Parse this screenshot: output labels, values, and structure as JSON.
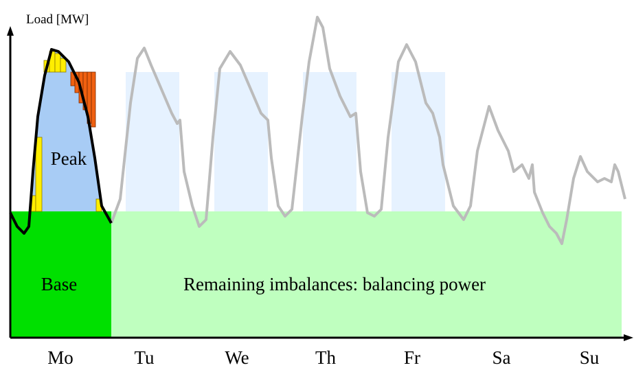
{
  "axis_label": "Load [MW]",
  "labels": {
    "peak": "Peak",
    "base": "Base",
    "remaining": "Remaining imbalances: balancing power"
  },
  "days": [
    "Mo",
    "Tu",
    "We",
    "Th",
    "Fr",
    "Sa",
    "Su"
  ]
}
